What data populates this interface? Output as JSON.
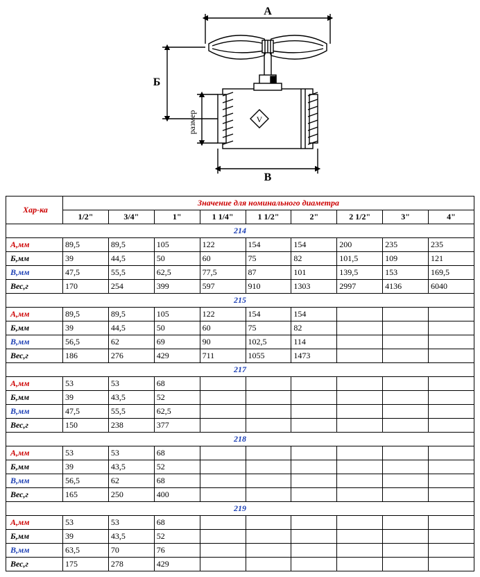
{
  "diagram": {
    "labels": {
      "A": "A",
      "B_cyr": "Б",
      "V": "В",
      "razmer": "размер"
    },
    "stroke": "#000000",
    "line_width": 1.4,
    "arrow_size": 6
  },
  "table": {
    "header_label": "Хар-ка",
    "header_group": "Значение для номинального диаметра",
    "sizes": [
      "1/2\"",
      "3/4\"",
      "1\"",
      "1 1/4\"",
      "1 1/2\"",
      "2\"",
      "2 1/2\"",
      "3\"",
      "4\""
    ],
    "row_labels": [
      "А,мм",
      "Б,мм",
      "В,мм",
      "Вес,г"
    ],
    "row_label_colors": [
      "#cc0000",
      "#000000",
      "#1a3db3",
      "#000000"
    ],
    "value_text_color": "#000000",
    "section_label_color": "#1a3db3",
    "header_label_color": "#cc0000",
    "border_color": "#000000",
    "background_color": "#ffffff",
    "font_family": "Times New Roman",
    "font_size_pt": 10,
    "sections": [
      {
        "name": "214",
        "rows": [
          [
            "89,5",
            "89,5",
            "105",
            "122",
            "154",
            "154",
            "200",
            "235",
            "235"
          ],
          [
            "39",
            "44,5",
            "50",
            "60",
            "75",
            "82",
            "101,5",
            "109",
            "121"
          ],
          [
            "47,5",
            "55,5",
            "62,5",
            "77,5",
            "87",
            "101",
            "139,5",
            "153",
            "169,5"
          ],
          [
            "170",
            "254",
            "399",
            "597",
            "910",
            "1303",
            "2997",
            "4136",
            "6040"
          ]
        ]
      },
      {
        "name": "215",
        "rows": [
          [
            "89,5",
            "89,5",
            "105",
            "122",
            "154",
            "154",
            "",
            "",
            ""
          ],
          [
            "39",
            "44,5",
            "50",
            "60",
            "75",
            "82",
            "",
            "",
            ""
          ],
          [
            "56,5",
            "62",
            "69",
            "90",
            "102,5",
            "114",
            "",
            "",
            ""
          ],
          [
            "186",
            "276",
            "429",
            "711",
            "1055",
            "1473",
            "",
            "",
            ""
          ]
        ]
      },
      {
        "name": "217",
        "rows": [
          [
            "53",
            "53",
            "68",
            "",
            "",
            "",
            "",
            "",
            ""
          ],
          [
            "39",
            "43,5",
            "52",
            "",
            "",
            "",
            "",
            "",
            ""
          ],
          [
            "47,5",
            "55,5",
            "62,5",
            "",
            "",
            "",
            "",
            "",
            ""
          ],
          [
            "150",
            "238",
            "377",
            "",
            "",
            "",
            "",
            "",
            ""
          ]
        ]
      },
      {
        "name": "218",
        "rows": [
          [
            "53",
            "53",
            "68",
            "",
            "",
            "",
            "",
            "",
            ""
          ],
          [
            "39",
            "43,5",
            "52",
            "",
            "",
            "",
            "",
            "",
            ""
          ],
          [
            "56,5",
            "62",
            "68",
            "",
            "",
            "",
            "",
            "",
            ""
          ],
          [
            "165",
            "250",
            "400",
            "",
            "",
            "",
            "",
            "",
            ""
          ]
        ]
      },
      {
        "name": "219",
        "rows": [
          [
            "53",
            "53",
            "68",
            "",
            "",
            "",
            "",
            "",
            ""
          ],
          [
            "39",
            "43,5",
            "52",
            "",
            "",
            "",
            "",
            "",
            ""
          ],
          [
            "63,5",
            "70",
            "76",
            "",
            "",
            "",
            "",
            "",
            ""
          ],
          [
            "175",
            "278",
            "429",
            "",
            "",
            "",
            "",
            "",
            ""
          ]
        ]
      }
    ]
  }
}
